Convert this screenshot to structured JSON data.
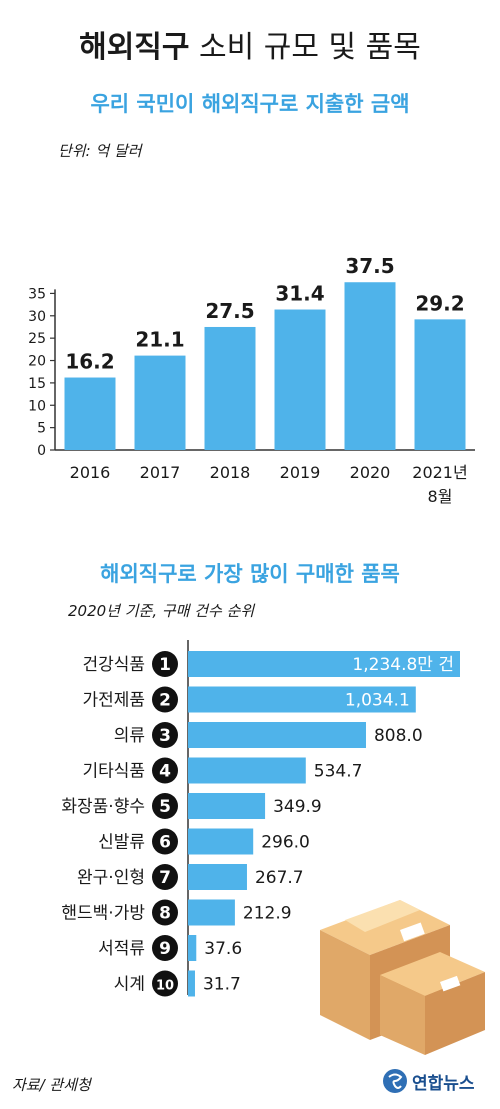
{
  "title": {
    "bold": "해외직구",
    "rest": " 소비 규모 및 품목"
  },
  "colors": {
    "bar": "#4fb3ea",
    "text": "#1a1a1a",
    "accent": "#3aa3e0",
    "axis": "#333333"
  },
  "chart_data": [
    {
      "type": "bar",
      "title": "우리 국민이 해외직구로 지출한 금액",
      "unit_note": "단위: 억 달러",
      "categories": [
        "2016",
        "2017",
        "2018",
        "2019",
        "2020",
        "2021년 8월"
      ],
      "values": [
        16.2,
        21.1,
        27.5,
        31.4,
        37.5,
        29.2
      ],
      "value_labels": [
        "16.2",
        "21.1",
        "27.5",
        "31.4",
        "37.5",
        "29.2"
      ],
      "ylim": [
        0,
        40
      ],
      "yticks": [
        0,
        5,
        10,
        15,
        20,
        25,
        30,
        35
      ],
      "grid": false
    },
    {
      "type": "bar",
      "orientation": "horizontal",
      "title": "해외직구로 가장 많이 구매한 품목",
      "subtitle": "2020년 기준, 구매 건수 순위",
      "categories": [
        "건강식품",
        "가전제품",
        "의류",
        "기타식품",
        "화장품·향수",
        "신발류",
        "완구·인형",
        "핸드백·가방",
        "서적류",
        "시계"
      ],
      "ranks": [
        "1",
        "2",
        "3",
        "4",
        "5",
        "6",
        "7",
        "8",
        "9",
        "10"
      ],
      "values": [
        1234.8,
        1034.1,
        808.0,
        534.7,
        349.9,
        296.0,
        267.7,
        212.9,
        37.6,
        31.7
      ],
      "value_labels": [
        "1,234.8만 건",
        "1,034.1",
        "808.0",
        "534.7",
        "349.9",
        "296.0",
        "267.7",
        "212.9",
        "37.6",
        "31.7"
      ],
      "unit": "만 건"
    }
  ],
  "footer": {
    "source": "자료/ 관세청",
    "logo_text": "연합뉴스"
  }
}
